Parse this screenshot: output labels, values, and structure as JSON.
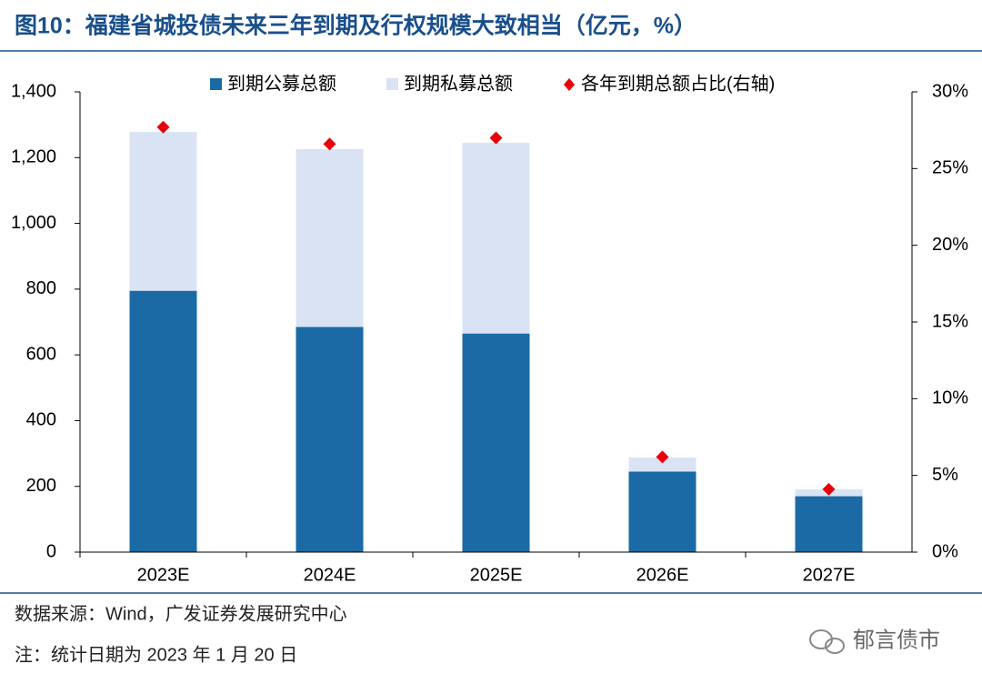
{
  "chart_data": {
    "type": "bar",
    "title": "图10：福建省城投债未来三年到期及行权规模大致相当（亿元，%）",
    "categories": [
      "2023E",
      "2024E",
      "2025E",
      "2026E",
      "2027E"
    ],
    "series": [
      {
        "name": "到期公募总额",
        "color": "#1b6aa5",
        "values": [
          795,
          685,
          665,
          245,
          170
        ]
      },
      {
        "name": "到期私募总额",
        "color": "#dae3f3",
        "values": [
          483,
          541,
          580,
          43,
          21
        ]
      },
      {
        "name": "各年到期总额占比(右轴)",
        "color": "#e8000b",
        "type": "scatter",
        "axis": "y2",
        "values": [
          27.7,
          26.6,
          27.0,
          6.2,
          4.1
        ]
      }
    ],
    "ylim": [
      0,
      1400
    ],
    "yticks": [
      0,
      200,
      400,
      600,
      800,
      {
        "value": 1000,
        "label": "1,000"
      },
      {
        "value": 1200,
        "label": "1,200"
      },
      {
        "value": 1400,
        "label": "1,400"
      }
    ],
    "y2lim": [
      0,
      30
    ],
    "y2ticks": [
      {
        "value": 0,
        "label": "0%"
      },
      {
        "value": 5,
        "label": "5%"
      },
      {
        "value": 10,
        "label": "10%"
      },
      {
        "value": 15,
        "label": "15%"
      },
      {
        "value": 20,
        "label": "20%"
      },
      {
        "value": 25,
        "label": "25%"
      },
      {
        "value": 30,
        "label": "30%"
      }
    ],
    "source": "数据来源：Wind，广发证券发展研究中心",
    "note": "注：统计日期为 2023 年 1 月 20 日",
    "watermark": "郁言债市"
  }
}
